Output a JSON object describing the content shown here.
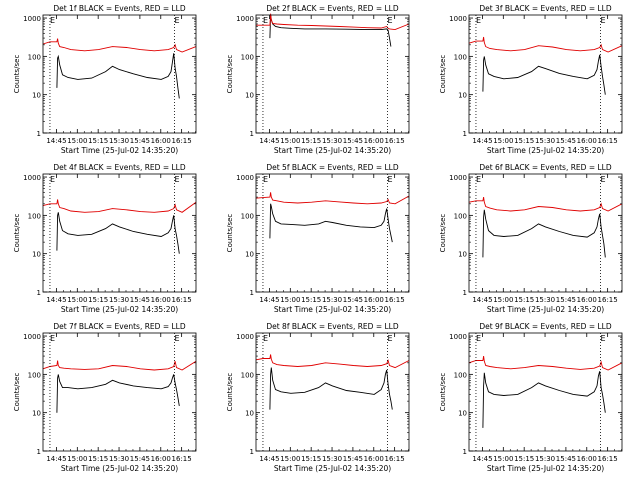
{
  "figure": {
    "panel_title_suffix": " BLACK = Events, RED = LLD",
    "xlabel": "Start Time (25-Jul-02 14:35:20)",
    "ylabel": "Counts/sec",
    "x_tick_labels": [
      "14:45",
      "15:00",
      "15:15",
      "15:30",
      "15:45",
      "16:00",
      "16:15"
    ],
    "y_tick_labels": [
      "1",
      "10",
      "100",
      "1000"
    ],
    "marker_label": "E",
    "colors": {
      "events": "#000000",
      "lld": "#e00000",
      "axes": "#000000"
    }
  },
  "chart_data": [
    {
      "type": "line",
      "title": "Det 1f BLACK = Events, RED = LLD",
      "xlabel": "Start Time (25-Jul-02 14:35:20)",
      "ylabel": "Counts/sec",
      "yscale": "log",
      "ylim": [
        1,
        1200
      ],
      "xlim_min": [
        -10,
        100
      ],
      "markers_min": [
        -5,
        84.5
      ],
      "dotted_lines_min": [
        -5,
        84.5
      ],
      "series": [
        {
          "name": "BLACK = Events",
          "x": [
            0,
            0.5,
            1,
            2,
            4,
            8,
            15,
            25,
            35,
            40,
            45,
            55,
            65,
            75,
            80,
            82,
            83,
            84,
            85,
            86,
            87,
            88
          ],
          "y": [
            15,
            90,
            100,
            60,
            33,
            28,
            25,
            27,
            40,
            55,
            45,
            35,
            28,
            25,
            30,
            40,
            70,
            120,
            50,
            30,
            15,
            8
          ]
        },
        {
          "name": "RED = LLD",
          "x": [
            -10,
            -5,
            0,
            0.5,
            1,
            2,
            5,
            10,
            20,
            30,
            40,
            50,
            60,
            70,
            80,
            84,
            85,
            86,
            90,
            100
          ],
          "y": [
            210,
            240,
            240,
            290,
            220,
            180,
            170,
            150,
            140,
            150,
            180,
            170,
            150,
            140,
            150,
            170,
            200,
            150,
            130,
            180
          ]
        }
      ]
    },
    {
      "type": "line",
      "title": "Det 2f BLACK = Events, RED = LLD",
      "xlabel": "Start Time (25-Jul-02 14:35:20)",
      "ylabel": "Counts/sec",
      "yscale": "log",
      "ylim": [
        1,
        1200
      ],
      "xlim_min": [
        -10,
        100
      ],
      "markers_min": [
        -5,
        84.5
      ],
      "dotted_lines_min": [
        -5,
        84.5
      ],
      "series": [
        {
          "name": "BLACK = Events",
          "x": [
            0,
            0.5,
            1,
            2,
            4,
            8,
            15,
            25,
            40,
            55,
            70,
            80,
            84,
            85,
            86,
            87
          ],
          "y": [
            300,
            1200,
            900,
            700,
            600,
            560,
            540,
            520,
            520,
            510,
            500,
            500,
            520,
            480,
            300,
            180
          ]
        },
        {
          "name": "RED = LLD",
          "x": [
            -10,
            0,
            0.5,
            1,
            2,
            5,
            10,
            20,
            30,
            40,
            50,
            60,
            70,
            80,
            84,
            85,
            86,
            90,
            100
          ],
          "y": [
            650,
            650,
            1300,
            900,
            720,
            700,
            680,
            650,
            640,
            620,
            600,
            580,
            560,
            550,
            600,
            540,
            520,
            500,
            700
          ]
        }
      ]
    },
    {
      "type": "line",
      "title": "Det 3f BLACK = Events, RED = LLD",
      "xlabel": "Start Time (25-Jul-02 14:35:20)",
      "ylabel": "Counts/sec",
      "yscale": "log",
      "ylim": [
        1,
        1200
      ],
      "xlim_min": [
        -10,
        100
      ],
      "markers_min": [
        -5,
        84.5
      ],
      "dotted_lines_min": [
        -5,
        84.5
      ],
      "series": [
        {
          "name": "BLACK = Events",
          "x": [
            0,
            0.5,
            1,
            2,
            4,
            8,
            15,
            25,
            35,
            40,
            45,
            55,
            65,
            75,
            80,
            82,
            83,
            84,
            85,
            86,
            87,
            88
          ],
          "y": [
            12,
            80,
            100,
            60,
            35,
            30,
            26,
            28,
            40,
            55,
            48,
            36,
            30,
            26,
            32,
            45,
            75,
            110,
            55,
            30,
            18,
            10
          ]
        },
        {
          "name": "RED = LLD",
          "x": [
            -10,
            -5,
            0,
            0.5,
            1,
            2,
            5,
            10,
            20,
            30,
            40,
            50,
            60,
            70,
            80,
            84,
            85,
            86,
            90,
            100
          ],
          "y": [
            220,
            250,
            250,
            320,
            230,
            180,
            160,
            150,
            140,
            150,
            190,
            175,
            150,
            140,
            150,
            170,
            200,
            150,
            130,
            190
          ]
        }
      ]
    },
    {
      "type": "line",
      "title": "Det 4f BLACK = Events, RED = LLD",
      "xlabel": "Start Time (25-Jul-02 14:35:20)",
      "ylabel": "Counts/sec",
      "yscale": "log",
      "ylim": [
        1,
        1200
      ],
      "xlim_min": [
        -10,
        100
      ],
      "markers_min": [
        -5,
        84.5
      ],
      "dotted_lines_min": [
        -5,
        84.5
      ],
      "series": [
        {
          "name": "BLACK = Events",
          "x": [
            0,
            0.5,
            1,
            2,
            4,
            8,
            15,
            25,
            35,
            40,
            45,
            55,
            65,
            75,
            80,
            82,
            83,
            84,
            85,
            86,
            87,
            88
          ],
          "y": [
            12,
            100,
            120,
            70,
            40,
            33,
            30,
            32,
            45,
            60,
            50,
            38,
            32,
            28,
            35,
            45,
            70,
            100,
            45,
            30,
            18,
            10
          ]
        },
        {
          "name": "RED = LLD",
          "x": [
            -10,
            -5,
            0,
            0.5,
            1,
            2,
            5,
            10,
            20,
            30,
            40,
            50,
            60,
            70,
            80,
            84,
            85,
            86,
            90,
            100
          ],
          "y": [
            180,
            200,
            200,
            260,
            200,
            160,
            150,
            130,
            120,
            125,
            150,
            140,
            125,
            120,
            130,
            150,
            190,
            140,
            120,
            220
          ]
        }
      ]
    },
    {
      "type": "line",
      "title": "Det 5f BLACK = Events, RED = LLD",
      "xlabel": "Start Time (25-Jul-02 14:35:20)",
      "ylabel": "Counts/sec",
      "yscale": "log",
      "ylim": [
        1,
        1200
      ],
      "xlim_min": [
        -10,
        100
      ],
      "markers_min": [
        -5,
        84.5
      ],
      "dotted_lines_min": [
        -5,
        84.5
      ],
      "series": [
        {
          "name": "BLACK = Events",
          "x": [
            0,
            0.5,
            1,
            2,
            4,
            8,
            15,
            25,
            35,
            40,
            45,
            55,
            65,
            75,
            80,
            82,
            83,
            84,
            85,
            86,
            87,
            88
          ],
          "y": [
            25,
            200,
            170,
            110,
            70,
            60,
            58,
            55,
            60,
            70,
            65,
            55,
            50,
            48,
            55,
            70,
            110,
            150,
            80,
            45,
            30,
            20
          ]
        },
        {
          "name": "RED = LLD",
          "x": [
            -10,
            -5,
            0,
            0.5,
            1,
            2,
            5,
            10,
            20,
            30,
            40,
            50,
            60,
            70,
            80,
            84,
            85,
            86,
            90,
            100
          ],
          "y": [
            280,
            290,
            300,
            400,
            300,
            250,
            240,
            220,
            210,
            220,
            240,
            225,
            210,
            200,
            210,
            230,
            260,
            210,
            200,
            320
          ]
        }
      ]
    },
    {
      "type": "line",
      "title": "Det 6f BLACK = Events, RED = LLD",
      "xlabel": "Start Time (25-Jul-02 14:35:20)",
      "ylabel": "Counts/sec",
      "yscale": "log",
      "ylim": [
        1,
        1200
      ],
      "xlim_min": [
        -10,
        100
      ],
      "markers_min": [
        -5,
        84.5
      ],
      "dotted_lines_min": [
        -5,
        84.5
      ],
      "series": [
        {
          "name": "BLACK = Events",
          "x": [
            0,
            0.5,
            1,
            2,
            4,
            8,
            15,
            25,
            35,
            40,
            45,
            55,
            65,
            75,
            80,
            82,
            83,
            84,
            85,
            86,
            87,
            88
          ],
          "y": [
            8,
            90,
            140,
            80,
            40,
            30,
            28,
            30,
            45,
            60,
            50,
            38,
            30,
            27,
            35,
            50,
            80,
            110,
            50,
            30,
            18,
            8
          ]
        },
        {
          "name": "RED = LLD",
          "x": [
            -10,
            -5,
            0,
            0.5,
            1,
            2,
            5,
            10,
            20,
            30,
            40,
            50,
            60,
            70,
            80,
            84,
            85,
            86,
            90,
            100
          ],
          "y": [
            220,
            240,
            240,
            300,
            220,
            170,
            155,
            140,
            130,
            140,
            170,
            160,
            140,
            130,
            140,
            160,
            200,
            150,
            130,
            200
          ]
        }
      ]
    },
    {
      "type": "line",
      "title": "Det 7f BLACK = Events, RED = LLD",
      "xlabel": "Start Time (25-Jul-02 14:35:20)",
      "ylabel": "Counts/sec",
      "yscale": "log",
      "ylim": [
        1,
        1200
      ],
      "xlim_min": [
        -10,
        100
      ],
      "markers_min": [
        -5,
        84.5
      ],
      "dotted_lines_min": [
        -5,
        84.5
      ],
      "series": [
        {
          "name": "BLACK = Events",
          "x": [
            0,
            0.5,
            1,
            2,
            4,
            8,
            15,
            25,
            35,
            40,
            45,
            55,
            65,
            75,
            80,
            82,
            83,
            84,
            85,
            86,
            87,
            88
          ],
          "y": [
            10,
            80,
            100,
            65,
            45,
            45,
            42,
            45,
            55,
            70,
            60,
            50,
            45,
            42,
            48,
            60,
            80,
            100,
            60,
            40,
            25,
            15
          ]
        },
        {
          "name": "RED = LLD",
          "x": [
            -10,
            -5,
            0,
            0.5,
            1,
            2,
            5,
            10,
            20,
            30,
            40,
            50,
            60,
            70,
            80,
            84,
            85,
            86,
            90,
            100
          ],
          "y": [
            140,
            160,
            170,
            230,
            170,
            150,
            145,
            140,
            135,
            140,
            170,
            160,
            140,
            130,
            140,
            160,
            220,
            150,
            130,
            220
          ]
        }
      ]
    },
    {
      "type": "line",
      "title": "Det 8f BLACK = Events, RED = LLD",
      "xlabel": "Start Time (25-Jul-02 14:35:20)",
      "ylabel": "Counts/sec",
      "yscale": "log",
      "ylim": [
        1,
        1200
      ],
      "xlim_min": [
        -10,
        100
      ],
      "markers_min": [
        -5,
        84.5
      ],
      "dotted_lines_min": [
        -5,
        84.5
      ],
      "series": [
        {
          "name": "BLACK = Events",
          "x": [
            0,
            0.5,
            1,
            2,
            4,
            8,
            15,
            25,
            35,
            40,
            45,
            55,
            65,
            75,
            80,
            82,
            83,
            84,
            85,
            86,
            87,
            88
          ],
          "y": [
            12,
            100,
            150,
            70,
            40,
            35,
            32,
            34,
            45,
            60,
            50,
            38,
            34,
            30,
            40,
            60,
            100,
            130,
            55,
            30,
            20,
            12
          ]
        },
        {
          "name": "RED = LLD",
          "x": [
            -10,
            -5,
            0,
            0.5,
            1,
            2,
            5,
            10,
            20,
            30,
            40,
            50,
            60,
            70,
            80,
            84,
            85,
            86,
            90,
            100
          ],
          "y": [
            240,
            260,
            260,
            330,
            250,
            200,
            180,
            170,
            160,
            170,
            200,
            185,
            170,
            160,
            170,
            190,
            230,
            170,
            150,
            230
          ]
        }
      ]
    },
    {
      "type": "line",
      "title": "Det 9f BLACK = Events, RED = LLD",
      "xlabel": "Start Time (25-Jul-02 14:35:20)",
      "ylabel": "Counts/sec",
      "yscale": "log",
      "ylim": [
        1,
        1200
      ],
      "xlim_min": [
        -10,
        100
      ],
      "markers_min": [
        -5,
        84.5
      ],
      "dotted_lines_min": [
        -5,
        84.5
      ],
      "series": [
        {
          "name": "BLACK = Events",
          "x": [
            0,
            0.5,
            1,
            2,
            4,
            8,
            15,
            25,
            35,
            40,
            45,
            55,
            65,
            75,
            80,
            82,
            83,
            84,
            85,
            86,
            87,
            88
          ],
          "y": [
            4,
            50,
            110,
            60,
            35,
            30,
            28,
            30,
            45,
            60,
            50,
            38,
            30,
            27,
            35,
            50,
            90,
            120,
            45,
            30,
            18,
            10
          ]
        },
        {
          "name": "RED = LLD",
          "x": [
            -10,
            -5,
            0,
            0.5,
            1,
            2,
            5,
            10,
            20,
            30,
            40,
            50,
            60,
            70,
            80,
            84,
            85,
            86,
            90,
            100
          ],
          "y": [
            200,
            230,
            230,
            300,
            220,
            170,
            160,
            150,
            140,
            150,
            170,
            160,
            145,
            135,
            145,
            165,
            210,
            150,
            130,
            200
          ]
        }
      ]
    }
  ]
}
